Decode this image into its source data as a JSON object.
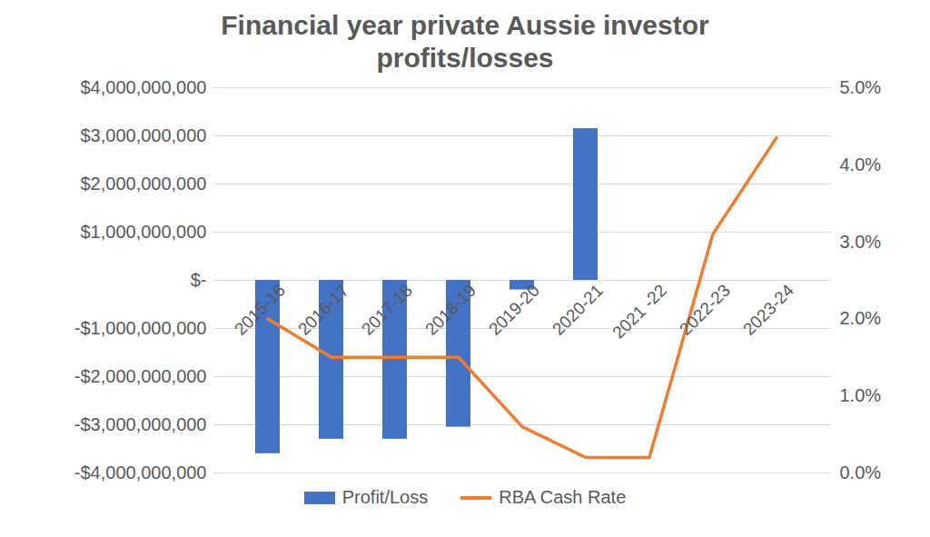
{
  "chart_data": {
    "type": "bar",
    "title": "Financial year private Aussie investor profits/losses",
    "categories": [
      "2015-16",
      "2016-17",
      "2017-18",
      "2018-19",
      "2019-20",
      "2020-21",
      "2021 -22",
      "2022-23",
      "2023-24"
    ],
    "series": [
      {
        "name": "Profit/Loss",
        "type": "bar",
        "color": "#4472c4",
        "values": [
          -3600000000,
          -3300000000,
          -3300000000,
          -3050000000,
          -200000000,
          3150000000,
          null,
          null,
          null
        ]
      },
      {
        "name": "RBA Cash Rate",
        "type": "line",
        "color": "#ed7d31",
        "axis": "y2",
        "values": [
          2.0,
          1.5,
          1.5,
          1.5,
          0.6,
          0.2,
          0.2,
          3.1,
          4.35
        ]
      }
    ],
    "ylim": [
      -4000000000,
      4000000000
    ],
    "yticks": [
      {
        "value": -4000000000,
        "label": "-$4,000,000,000"
      },
      {
        "value": -3000000000,
        "label": "-$3,000,000,000"
      },
      {
        "value": -2000000000,
        "label": "-$2,000,000,000"
      },
      {
        "value": -1000000000,
        "label": "-$1,000,000,000"
      },
      {
        "value": 0,
        "label": "$-"
      },
      {
        "value": 1000000000,
        "label": "$1,000,000,000"
      },
      {
        "value": 2000000000,
        "label": "$2,000,000,000"
      },
      {
        "value": 3000000000,
        "label": "$3,000,000,000"
      },
      {
        "value": 4000000000,
        "label": "$4,000,000,000"
      }
    ],
    "y2lim": [
      0,
      5
    ],
    "y2ticks": [
      {
        "value": 0,
        "label": "0.0%"
      },
      {
        "value": 1,
        "label": "1.0%"
      },
      {
        "value": 2,
        "label": "2.0%"
      },
      {
        "value": 3,
        "label": "3.0%"
      },
      {
        "value": 4,
        "label": "4.0%"
      },
      {
        "value": 5,
        "label": "5.0%"
      }
    ],
    "grid": true,
    "legend": "bottom"
  }
}
